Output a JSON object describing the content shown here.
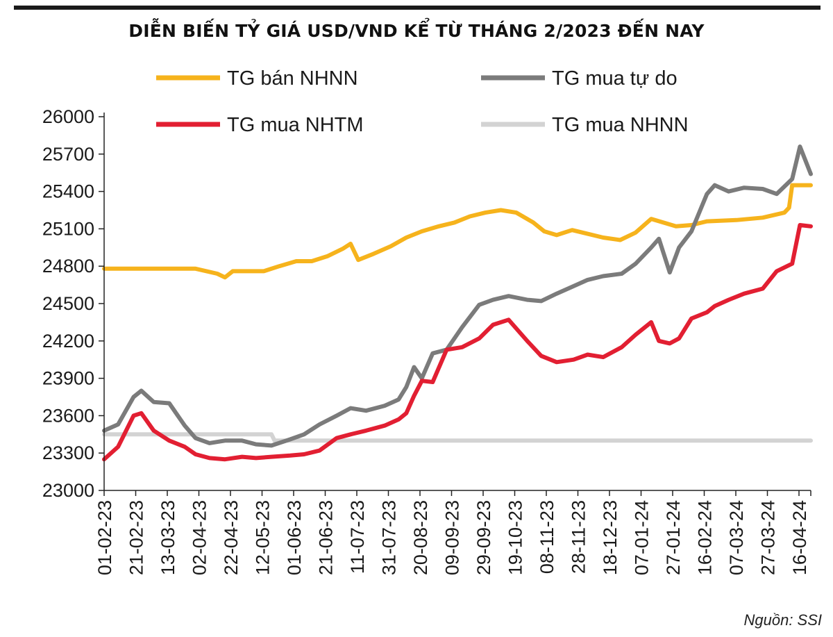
{
  "chart_data": {
    "type": "line",
    "title": "DIỄN BIẾN TỶ GIÁ USD/VND KỂ TỪ THÁNG 2/2023 ĐẾN NAY",
    "source": "Nguồn: SSI",
    "ylim": [
      23000,
      26000
    ],
    "yticks": [
      23000,
      23300,
      23600,
      23900,
      24200,
      24500,
      24800,
      25100,
      25400,
      25700,
      26000
    ],
    "xlim": [
      "01-02-23",
      "02-05-24"
    ],
    "x_tick_labels": [
      "01-02-23",
      "21-02-23",
      "13-03-23",
      "02-04-23",
      "22-04-23",
      "12-05-23",
      "01-06-23",
      "21-06-23",
      "11-07-23",
      "31-07-23",
      "20-08-23",
      "09-09-23",
      "29-09-23",
      "19-10-23",
      "08-11-23",
      "28-11-23",
      "18-12-23",
      "07-01-24",
      "27-01-24",
      "16-02-24",
      "07-03-24",
      "27-03-24",
      "16-04-24"
    ],
    "grid": false,
    "legend_position": "top",
    "series": [
      {
        "name": "TG bán NHNN",
        "color": "#f6b31c",
        "x": [
          "01-02-23",
          "01-04-23",
          "15-04-23",
          "20-04-23",
          "25-04-23",
          "15-05-23",
          "25-05-23",
          "05-06-23",
          "15-06-23",
          "25-06-23",
          "05-07-23",
          "10-07-23",
          "15-07-23",
          "25-07-23",
          "05-08-23",
          "15-08-23",
          "25-08-23",
          "05-09-23",
          "15-09-23",
          "25-09-23",
          "05-10-23",
          "15-10-23",
          "25-10-23",
          "05-11-23",
          "12-11-23",
          "20-11-23",
          "30-11-23",
          "10-12-23",
          "20-12-23",
          "31-12-23",
          "10-01-24",
          "20-01-24",
          "05-02-24",
          "15-02-24",
          "25-02-24",
          "15-03-24",
          "01-04-24",
          "15-04-24",
          "18-04-24",
          "20-04-24",
          "02-05-24"
        ],
        "values": [
          24780,
          24780,
          24740,
          24710,
          24760,
          24760,
          24800,
          24840,
          24840,
          24880,
          24940,
          24980,
          24850,
          24900,
          24960,
          25030,
          25080,
          25120,
          25150,
          25200,
          25230,
          25250,
          25230,
          25150,
          25080,
          25050,
          25090,
          25060,
          25030,
          25010,
          25070,
          25180,
          25120,
          25130,
          25160,
          25170,
          25190,
          25230,
          25270,
          25450,
          25450
        ]
      },
      {
        "name": "TG mua tự do",
        "color": "#7b7b7b",
        "x": [
          "01-02-23",
          "10-02-23",
          "20-02-23",
          "25-02-23",
          "05-03-23",
          "15-03-23",
          "25-03-23",
          "01-04-23",
          "10-04-23",
          "20-04-23",
          "01-05-23",
          "10-05-23",
          "20-05-23",
          "01-06-23",
          "10-06-23",
          "20-06-23",
          "01-07-23",
          "10-07-23",
          "20-07-23",
          "01-08-23",
          "10-08-23",
          "15-08-23",
          "20-08-23",
          "25-08-23",
          "01-09-23",
          "10-09-23",
          "20-09-23",
          "01-10-23",
          "10-10-23",
          "20-10-23",
          "01-11-23",
          "10-11-23",
          "20-11-23",
          "01-12-23",
          "10-12-23",
          "20-12-23",
          "01-01-24",
          "10-01-24",
          "20-01-24",
          "25-01-24",
          "01-02-24",
          "07-02-24",
          "15-02-24",
          "25-02-24",
          "01-03-24",
          "10-03-24",
          "20-03-24",
          "01-04-24",
          "10-04-24",
          "20-04-24",
          "25-04-24",
          "02-05-24"
        ],
        "values": [
          23480,
          23530,
          23750,
          23800,
          23710,
          23700,
          23520,
          23420,
          23380,
          23400,
          23400,
          23370,
          23360,
          23410,
          23450,
          23530,
          23600,
          23660,
          23640,
          23680,
          23730,
          23830,
          23990,
          23900,
          24100,
          24130,
          24310,
          24490,
          24530,
          24560,
          24530,
          24520,
          24580,
          24640,
          24690,
          24720,
          24740,
          24820,
          24950,
          25020,
          24750,
          24950,
          25080,
          25380,
          25450,
          25400,
          25430,
          25420,
          25380,
          25500,
          25760,
          25540
        ]
      },
      {
        "name": "TG mua NHTM",
        "color": "#e21f32",
        "x": [
          "01-02-23",
          "10-02-23",
          "20-02-23",
          "25-02-23",
          "05-03-23",
          "15-03-23",
          "25-03-23",
          "01-04-23",
          "10-04-23",
          "20-04-23",
          "01-05-23",
          "10-05-23",
          "20-05-23",
          "01-06-23",
          "10-06-23",
          "20-06-23",
          "01-07-23",
          "10-07-23",
          "20-07-23",
          "01-08-23",
          "10-08-23",
          "15-08-23",
          "20-08-23",
          "25-08-23",
          "01-09-23",
          "10-09-23",
          "20-09-23",
          "01-10-23",
          "10-10-23",
          "20-10-23",
          "01-11-23",
          "10-11-23",
          "20-11-23",
          "01-12-23",
          "10-12-23",
          "20-12-23",
          "01-01-24",
          "10-01-24",
          "20-01-24",
          "25-01-24",
          "01-02-24",
          "07-02-24",
          "15-02-24",
          "25-02-24",
          "01-03-24",
          "10-03-24",
          "20-03-24",
          "01-04-24",
          "10-04-24",
          "20-04-24",
          "25-04-24",
          "02-05-24"
        ],
        "values": [
          23250,
          23350,
          23600,
          23620,
          23480,
          23400,
          23350,
          23290,
          23260,
          23250,
          23270,
          23260,
          23270,
          23280,
          23290,
          23320,
          23420,
          23450,
          23480,
          23520,
          23570,
          23620,
          23760,
          23880,
          23870,
          24130,
          24150,
          24220,
          24330,
          24370,
          24200,
          24080,
          24030,
          24050,
          24090,
          24070,
          24150,
          24250,
          24350,
          24200,
          24180,
          24220,
          24380,
          24430,
          24480,
          24530,
          24580,
          24620,
          24760,
          24820,
          25130,
          25120
        ]
      },
      {
        "name": "TG mua NHNN",
        "color": "#d3d3d3",
        "x": [
          "01-02-23",
          "20-05-23",
          "22-05-23",
          "02-05-24"
        ],
        "values": [
          23450,
          23450,
          23400,
          23400
        ]
      }
    ]
  }
}
